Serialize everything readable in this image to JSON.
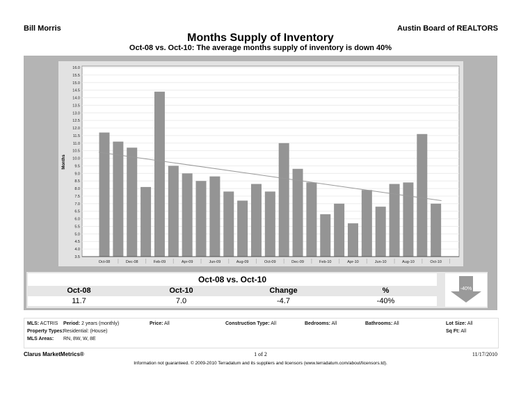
{
  "header": {
    "agent": "Bill Morris",
    "board": "Austin Board of REALTORS",
    "title": "Months Supply of Inventory",
    "subtitle": "Oct-08 vs. Oct-10:  The average months supply of inventory is down 40%"
  },
  "chart_data": {
    "type": "bar",
    "ylabel": "Months",
    "ylim": [
      3.5,
      16.0
    ],
    "yticks": [
      "3.5",
      "4.0",
      "4.5",
      "5.0",
      "5.5",
      "6.0",
      "6.5",
      "7.0",
      "7.5",
      "8.0",
      "8.5",
      "9.0",
      "9.5",
      "10.0",
      "10.5",
      "11.0",
      "11.5",
      "12.0",
      "12.5",
      "13.0",
      "13.5",
      "14.0",
      "14.5",
      "15.0",
      "15.5",
      "16.0"
    ],
    "categories": [
      "Oct-08",
      "Nov-08",
      "Dec-08",
      "Jan-09",
      "Feb-09",
      "Mar-09",
      "Apr-09",
      "May-09",
      "Jun-09",
      "Jul-09",
      "Aug-09",
      "Sep-09",
      "Oct-09",
      "Nov-09",
      "Dec-09",
      "Jan-10",
      "Feb-10",
      "Mar-10",
      "Apr-10",
      "May-10",
      "Jun-10",
      "Jul-10",
      "Aug-10",
      "Sep-10",
      "Oct-10"
    ],
    "xtick_labels": [
      "Oct-08",
      "Dec-08",
      "Feb-09",
      "Apr-09",
      "Jun-09",
      "Aug-09",
      "Oct-09",
      "Dec-09",
      "Feb-10",
      "Apr-10",
      "Jun-10",
      "Aug-10",
      "Oct-10"
    ],
    "values": [
      11.7,
      11.1,
      10.7,
      8.1,
      14.4,
      9.5,
      9.0,
      8.5,
      8.8,
      7.8,
      7.2,
      8.3,
      7.8,
      11.0,
      9.3,
      8.4,
      6.3,
      7.0,
      5.7,
      7.9,
      6.8,
      8.3,
      8.4,
      11.6,
      7.0
    ],
    "trendline": {
      "start": 10.4,
      "end": 7.2
    },
    "grid": true,
    "bar_color": "#949494"
  },
  "summary": {
    "title": "Oct-08 vs. Oct-10",
    "headers": [
      "Oct-08",
      "Oct-10",
      "Change",
      "%"
    ],
    "values": [
      "11.7",
      "7.0",
      "-4.7",
      "-40%"
    ],
    "arrow_label": "-40%",
    "arrow_direction": "down"
  },
  "filters": {
    "mls_label": "MLS:",
    "mls": "ACTRIS",
    "period_label": "Period:",
    "period": "2 years (monthly)",
    "price_label": "Price:",
    "price": "All",
    "construction_label": "Construction Type:",
    "construction": "All",
    "bedrooms_label": "Bedrooms:",
    "bedrooms": "All",
    "bathrooms_label": "Bathrooms:",
    "bathrooms": "All",
    "lot_label": "Lot Size:",
    "lot": "All",
    "sqft_label": "Sq Ft:",
    "sqft": "All",
    "ptype_label": "Property Types:",
    "ptype": "Residential: (House)",
    "areas_label": "MLS Areas:",
    "areas": "RN, 8W, W, 8E"
  },
  "footer": {
    "brand": "Clarus MarketMetrics®",
    "page": "1 of 2",
    "date": "11/17/2010",
    "disclaimer": "Information not guaranteed.  © 2009-2010 Terradatum and its suppliers and licensors (www.terradatum.com/about/licensors.td)."
  }
}
